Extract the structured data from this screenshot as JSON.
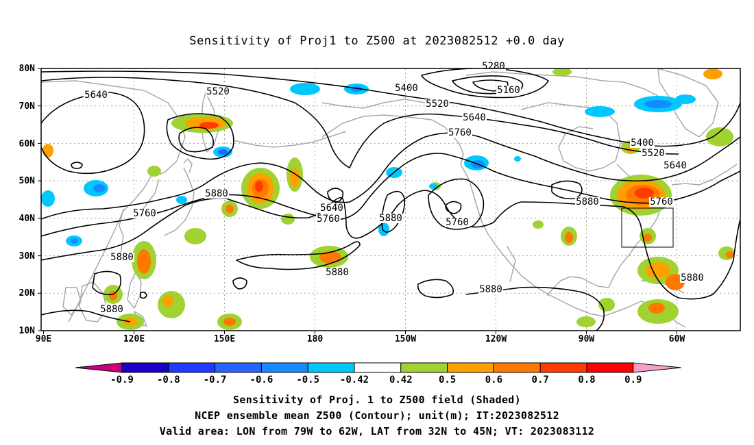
{
  "title": "Sensitivity of Proj1 to Z500 at 2023082512 +0.0 day",
  "map": {
    "lat_labels": [
      "80N",
      "70N",
      "60N",
      "50N",
      "40N",
      "30N",
      "20N",
      "10N"
    ],
    "lon_labels": [
      "90E",
      "120E",
      "150E",
      "180",
      "150W",
      "120W",
      "90W",
      "60W"
    ],
    "contour_labels": [
      {
        "text": "5640"
      },
      {
        "text": "5520"
      },
      {
        "text": "5400"
      },
      {
        "text": "5280"
      },
      {
        "text": "5160"
      },
      {
        "text": "5520"
      },
      {
        "text": "5640"
      },
      {
        "text": "5760"
      },
      {
        "text": "5880"
      },
      {
        "text": "5760"
      },
      {
        "text": "5640"
      },
      {
        "text": "5760"
      },
      {
        "text": "5880"
      },
      {
        "text": "5760"
      },
      {
        "text": "5880"
      },
      {
        "text": "5880"
      },
      {
        "text": "5880"
      },
      {
        "text": "5400"
      },
      {
        "text": "5520"
      },
      {
        "text": "5640"
      },
      {
        "text": "5760"
      },
      {
        "text": "5880"
      },
      {
        "text": "5880"
      },
      {
        "text": "5880"
      }
    ],
    "colors": {
      "contour": "#000000",
      "coast": "#a8a8a8",
      "grid": "#a0a0a0",
      "valid_box": "#000000"
    },
    "valid_area_box": {
      "lon_from": "79W",
      "lon_to": "62W",
      "lat_from": "32N",
      "lat_to": "45N"
    }
  },
  "colorbar": {
    "labels": [
      "-0.9",
      "-0.8",
      "-0.7",
      "-0.6",
      "-0.5",
      "-0.42",
      "0.42",
      "0.5",
      "0.6",
      "0.7",
      "0.8",
      "0.9"
    ],
    "colors": [
      "#1a00c8",
      "#1e3cff",
      "#2864ff",
      "#148cff",
      "#00c8ff",
      "#ffffff",
      "#a0d232",
      "#ffa000",
      "#ff7800",
      "#ff3c00",
      "#ff0000"
    ],
    "low_arrow_color": "#c8007a",
    "high_arrow_color": "#f5a0c8"
  },
  "captions": {
    "line1": "Sensitivity of Proj. 1 to Z500 field (Shaded)",
    "line2": "NCEP ensemble mean Z500 (Contour); unit(m); IT:2023082512",
    "line3": "Valid area: LON from 79W to 62W, LAT from 32N to 45N; VT: 2023083112"
  }
}
